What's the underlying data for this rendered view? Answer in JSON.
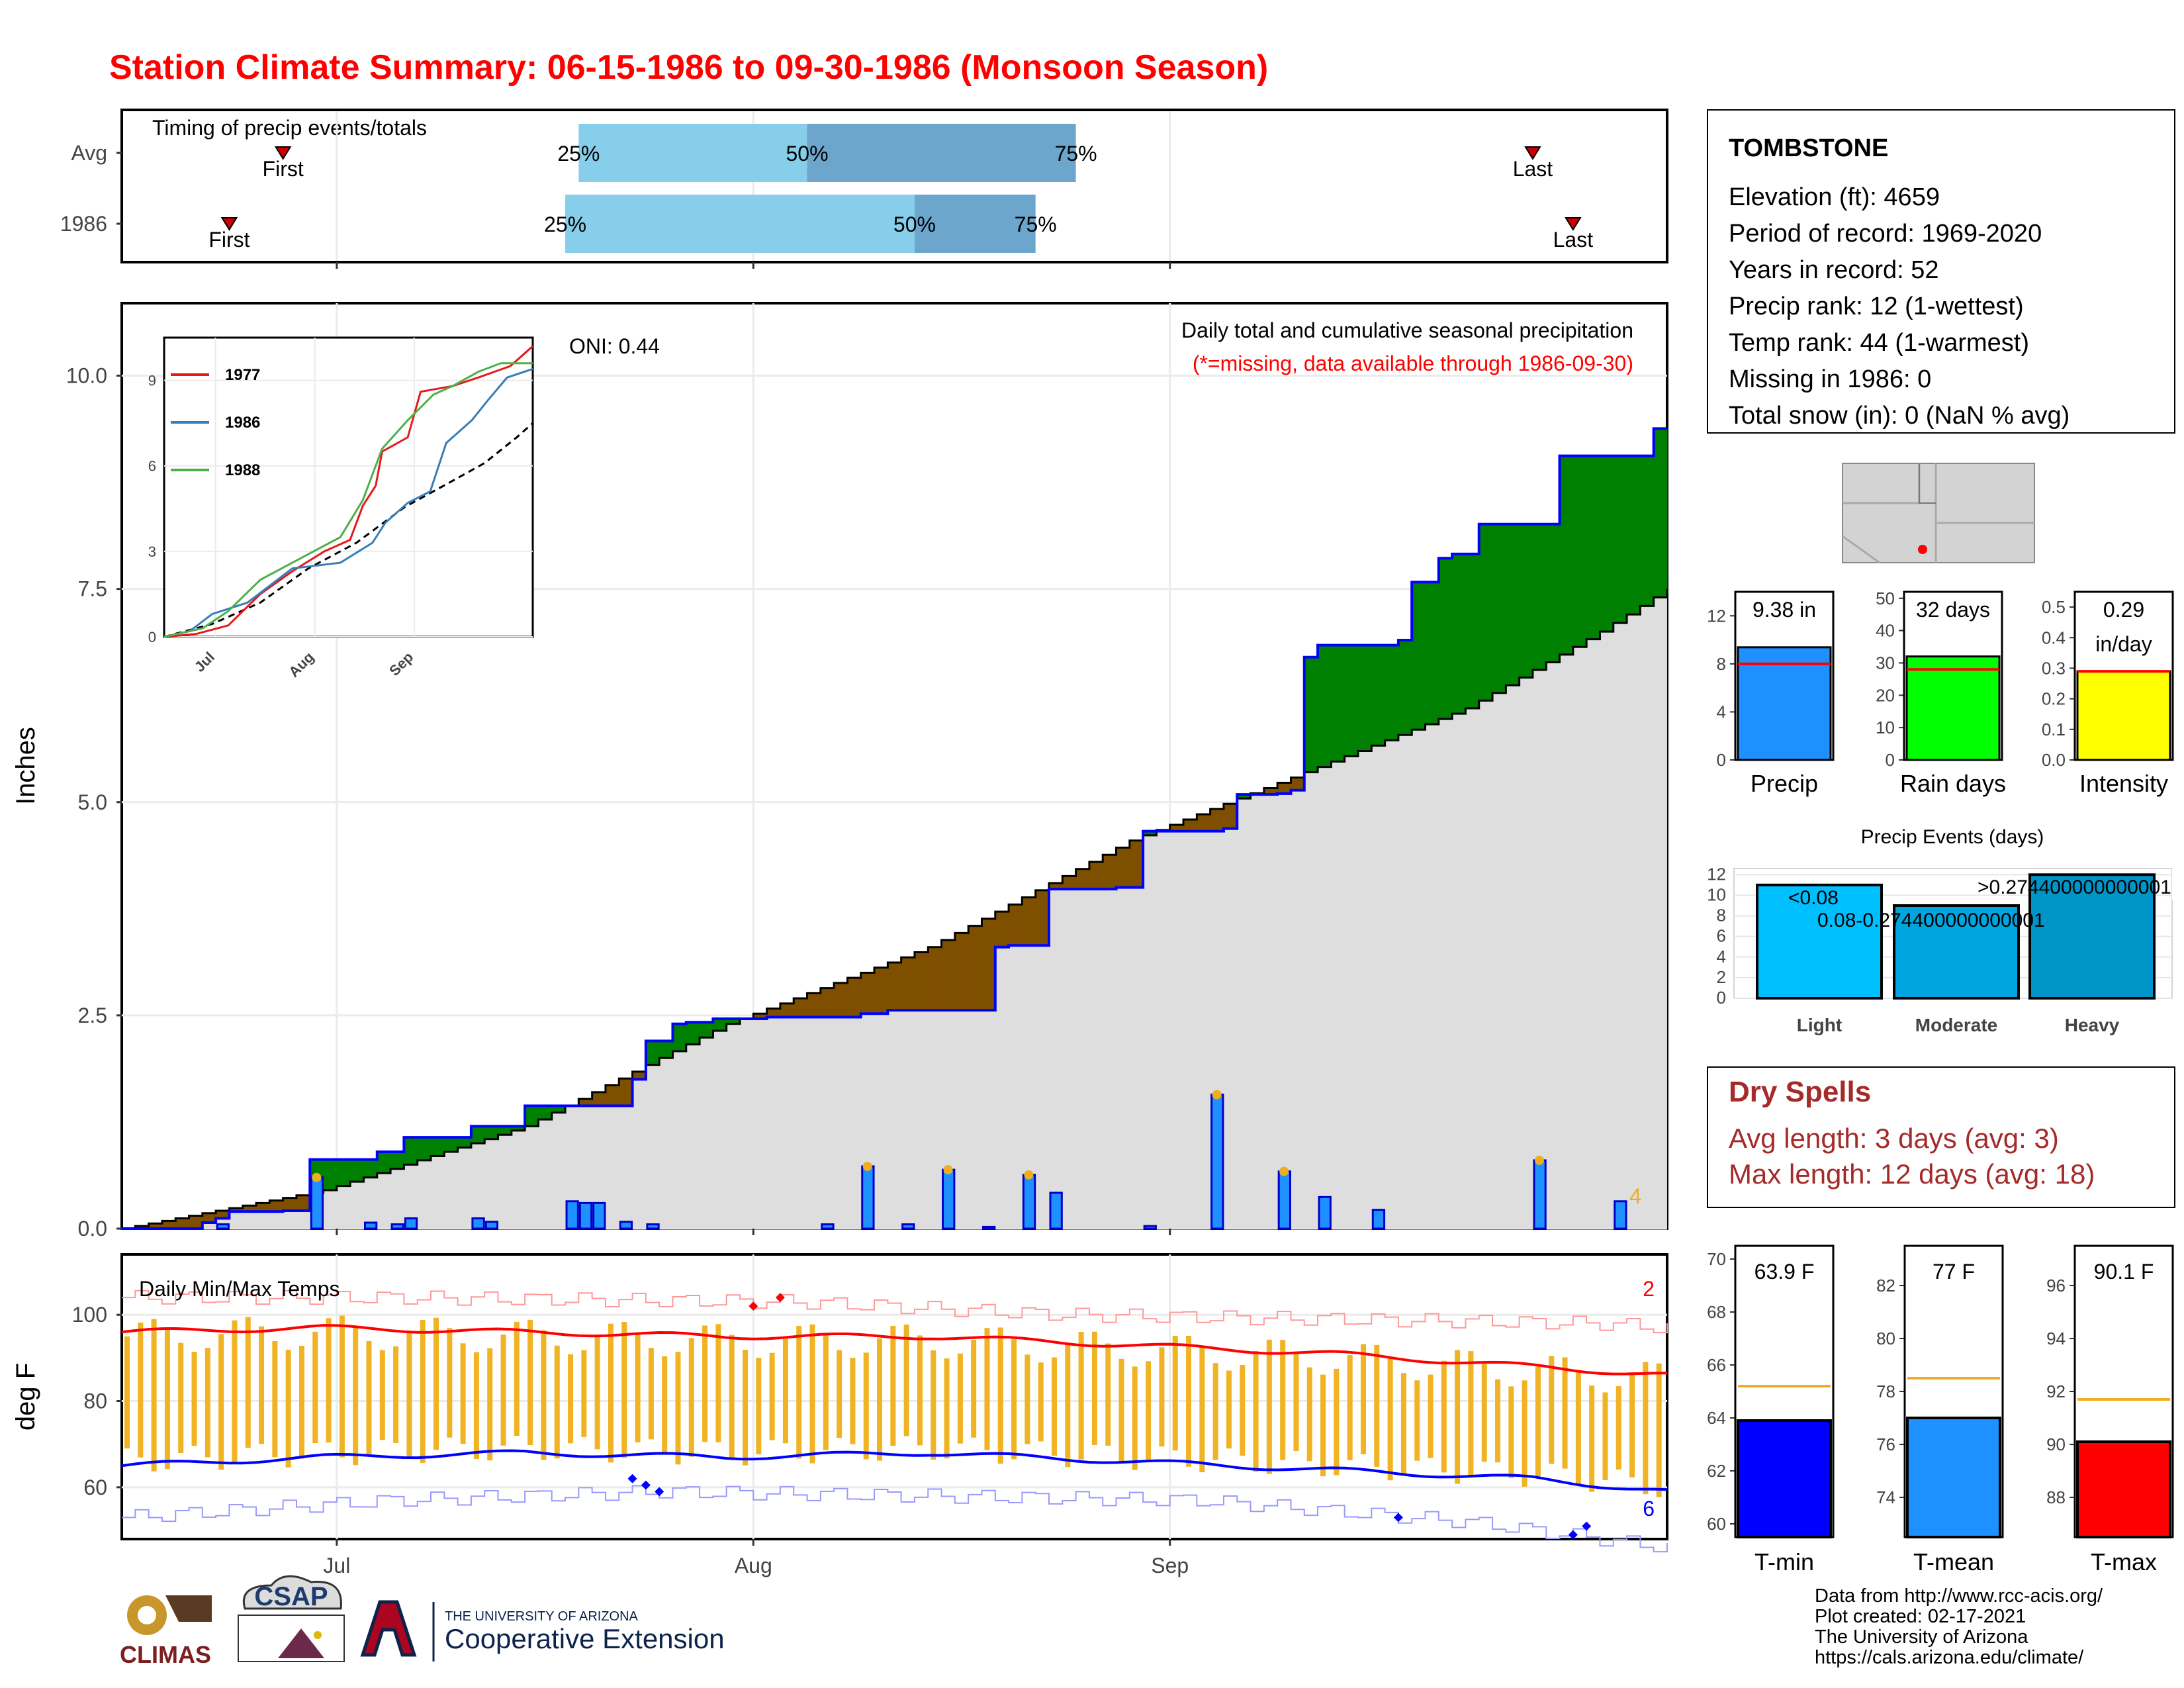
{
  "title": "Station Climate Summary: 06-15-1986 to 09-30-1986 (Monsoon Season)",
  "colors": {
    "title": "#ff0000",
    "green": "#008000",
    "brown": "#7f4f00",
    "grey": "#dedede",
    "blue_line": "#0000ff",
    "bar_blue": "#1e90ff",
    "orange": "#f0ad1e",
    "tmax": "#ff0000",
    "tmin": "#0000ff",
    "dry": "#a52a2a"
  },
  "months": [
    "Jul",
    "Aug",
    "Sep"
  ],
  "timing": {
    "title": "Timing of precip events/totals",
    "rows": [
      {
        "label": "Avg",
        "first": "First",
        "last": "Last",
        "q25": "25%",
        "q50": "50%",
        "q75": "75%"
      },
      {
        "label": "1986",
        "first": "First",
        "last": "Last",
        "q25": "25%",
        "q50": "50%",
        "q75": "75%"
      }
    ]
  },
  "precip_panel": {
    "ylabel": "Inches",
    "yticks": [
      "0.0",
      "2.5",
      "5.0",
      "7.5",
      "10.0"
    ],
    "oni": "ONI: 0.44",
    "subtitle": "Daily total and cumulative seasonal precipitation",
    "note": "(*=missing, data available through 1986-09-30)",
    "corner_count": "4",
    "inset": {
      "yticks": [
        "0",
        "3",
        "6",
        "9"
      ],
      "xticks": [
        "Jul",
        "Aug",
        "Sep"
      ],
      "legend": [
        "1977",
        "1986",
        "1988"
      ],
      "legend_colors": [
        "#e41a1c",
        "#377eb8",
        "#4daf4a"
      ]
    }
  },
  "temp_panel": {
    "ylabel": "deg F",
    "title": "Daily Min/Max Temps",
    "yticks": [
      "60",
      "80",
      "100"
    ],
    "hot_count": "2",
    "cold_count": "6"
  },
  "station": {
    "name": "TOMBSTONE",
    "lines": [
      "Elevation (ft): 4659",
      "Period of record: 1969-2020",
      "Years in record: 52",
      "Precip rank: 12 (1-wettest)",
      "Temp rank: 44 (1-warmest)",
      "Missing in 1986: 0",
      "Total snow (in): 0 (NaN % avg)"
    ]
  },
  "mini_bars": [
    {
      "label": "Precip",
      "value_text": "9.38 in",
      "value": 9.38,
      "avg": 8.0,
      "ymax": 14,
      "ticks": [
        "0",
        "4",
        "8",
        "12"
      ],
      "tickvals": [
        0,
        4,
        8,
        12
      ],
      "color": "#1e90ff"
    },
    {
      "label": "Rain days",
      "value_text": "32 days",
      "value": 32,
      "avg": 28,
      "ymax": 52,
      "ticks": [
        "0",
        "10",
        "20",
        "30",
        "40",
        "50"
      ],
      "tickvals": [
        0,
        10,
        20,
        30,
        40,
        50
      ],
      "color": "#00ff00"
    },
    {
      "label": "Intensity",
      "value_text": "0.29\nin/day",
      "value": 0.29,
      "avg": 0.29,
      "ymax": 0.55,
      "ticks": [
        "0.0",
        "0.1",
        "0.2",
        "0.3",
        "0.4",
        "0.5"
      ],
      "tickvals": [
        0,
        0.1,
        0.2,
        0.3,
        0.4,
        0.5
      ],
      "color": "#ffff00"
    }
  ],
  "events": {
    "title": "Precip Events (days)",
    "yticks": [
      "0",
      "2",
      "4",
      "6",
      "8",
      "10",
      "12"
    ],
    "bars": [
      {
        "category": "Light",
        "value": 11,
        "label": "<0.08",
        "color": "#00bfff"
      },
      {
        "category": "Moderate",
        "value": 9,
        "label": "0.08-0.274400000000001",
        "color": "#00a5e0"
      },
      {
        "category": "Heavy",
        "value": 12,
        "label": ">0.274400000000001",
        "color": "#0095c8"
      }
    ]
  },
  "dry_spells": {
    "title": "Dry Spells",
    "avg": "Avg length: 3 days (avg: 3)",
    "max": "Max length: 12 days (avg: 18)"
  },
  "temp_bars": [
    {
      "label": "T-min",
      "value_text": "63.9 F",
      "value": 63.9,
      "avg": 65.2,
      "ymin": 59.5,
      "ymax": 70.5,
      "ticks": [
        "60",
        "62",
        "64",
        "66",
        "68",
        "70"
      ],
      "tickvals": [
        60,
        62,
        64,
        66,
        68,
        70
      ],
      "color": "#0000ff"
    },
    {
      "label": "T-mean",
      "value_text": "77 F",
      "value": 77.0,
      "avg": 78.5,
      "ymin": 72.5,
      "ymax": 83.5,
      "ticks": [
        "74",
        "76",
        "78",
        "80",
        "82"
      ],
      "tickvals": [
        74,
        76,
        78,
        80,
        82
      ],
      "color": "#1e90ff"
    },
    {
      "label": "T-max",
      "value_text": "90.1 F",
      "value": 90.1,
      "avg": 91.7,
      "ymin": 86.5,
      "ymax": 97.5,
      "ticks": [
        "88",
        "90",
        "92",
        "94",
        "96"
      ],
      "tickvals": [
        88,
        90,
        92,
        94,
        96
      ],
      "color": "#ff0000"
    }
  ],
  "footer": {
    "logos": [
      "CLIMAS",
      "CSAP",
      "THE UNIVERSITY OF ARIZONA",
      "Cooperative Extension"
    ],
    "lines": [
      "Data from http://www.rcc-acis.org/",
      "Plot created: 02-17-2021",
      "The University of Arizona",
      "https://cals.arizona.edu/climate/"
    ]
  },
  "chart_data": [
    {
      "type": "line",
      "name": "cumulative precipitation",
      "x_start": "1986-06-15",
      "x_end": "1986-09-30",
      "ylim": [
        0,
        10
      ],
      "ylabel": "Inches",
      "series": [
        {
          "name": "1986 cumulative",
          "points": [
            [
              0,
              0
            ],
            [
              6,
              0.07
            ],
            [
              7,
              0.12
            ],
            [
              8,
              0.2
            ],
            [
              12,
              0.21
            ],
            [
              14,
              0.81
            ],
            [
              19,
              0.9
            ],
            [
              21,
              1.07
            ],
            [
              26,
              1.2
            ],
            [
              30,
              1.44
            ],
            [
              38,
              1.75
            ],
            [
              39,
              2.2
            ],
            [
              41,
              2.4
            ],
            [
              42,
              2.42
            ],
            [
              44,
              2.46
            ],
            [
              48,
              2.48
            ],
            [
              55,
              2.52
            ],
            [
              57,
              2.56
            ],
            [
              64,
              2.56
            ],
            [
              65,
              3.3
            ],
            [
              66,
              3.32
            ],
            [
              68,
              3.32
            ],
            [
              69,
              3.98
            ],
            [
              74,
              4.0
            ],
            [
              76,
              4.66
            ],
            [
              82,
              4.69
            ],
            [
              83,
              5.09
            ],
            [
              86,
              5.1
            ],
            [
              87,
              5.14
            ],
            [
              88,
              6.7
            ],
            [
              89,
              6.84
            ],
            [
              95,
              6.9
            ],
            [
              96,
              7.58
            ],
            [
              98,
              7.86
            ],
            [
              99,
              7.91
            ],
            [
              101,
              8.26
            ],
            [
              106,
              8.26
            ],
            [
              107,
              9.06
            ],
            [
              113,
              9.06
            ],
            [
              114,
              9.38
            ],
            [
              115,
              9.38
            ]
          ]
        },
        {
          "name": "average cumulative",
          "points": [
            [
              0,
              0
            ],
            [
              15,
              0.45
            ],
            [
              30,
              1.2
            ],
            [
              45,
              2.4
            ],
            [
              60,
              3.3
            ],
            [
              75,
              4.55
            ],
            [
              88,
              5.35
            ],
            [
              100,
              6.1
            ],
            [
              110,
              7.0
            ],
            [
              115,
              7.5
            ]
          ]
        }
      ]
    },
    {
      "type": "bar",
      "name": "daily precipitation",
      "days": [
        7,
        14,
        18,
        20,
        21,
        26,
        27,
        33,
        34,
        35,
        37,
        39,
        52,
        55,
        58,
        61,
        64,
        67,
        69,
        76,
        81,
        86,
        89,
        93,
        105,
        111
      ],
      "values": [
        0.05,
        0.6,
        0.07,
        0.05,
        0.12,
        0.12,
        0.08,
        0.32,
        0.3,
        0.3,
        0.08,
        0.05,
        0.05,
        0.73,
        0.05,
        0.69,
        0.02,
        0.63,
        0.42,
        0.03,
        1.57,
        0.67,
        0.37,
        0.22,
        0.8,
        0.32
      ]
    },
    {
      "type": "line",
      "name": "daily temperatures",
      "ylim": [
        48,
        114
      ],
      "ylabel": "deg F",
      "series": [
        {
          "name": "avg max",
          "points": [
            [
              0,
              96
            ],
            [
              15,
              97
            ],
            [
              30,
              96
            ],
            [
              45,
              95
            ],
            [
              60,
              95
            ],
            [
              75,
              93
            ],
            [
              90,
              91
            ],
            [
              105,
              88
            ],
            [
              115,
              86
            ]
          ]
        },
        {
          "name": "avg min",
          "points": [
            [
              0,
              65
            ],
            [
              15,
              67
            ],
            [
              30,
              68
            ],
            [
              45,
              67
            ],
            [
              60,
              68
            ],
            [
              75,
              66
            ],
            [
              90,
              64
            ],
            [
              105,
              62
            ],
            [
              115,
              59
            ]
          ]
        },
        {
          "name": "record max",
          "points": [
            [
              0,
              104
            ],
            [
              20,
              104
            ],
            [
              50,
              103
            ],
            [
              70,
              100
            ],
            [
              90,
              99
            ],
            [
              110,
              98
            ],
            [
              115,
              97
            ]
          ]
        },
        {
          "name": "record min",
          "points": [
            [
              0,
              53
            ],
            [
              20,
              57
            ],
            [
              40,
              59
            ],
            [
              60,
              58
            ],
            [
              80,
              57
            ],
            [
              100,
              52
            ],
            [
              115,
              46
            ]
          ]
        }
      ]
    }
  ]
}
